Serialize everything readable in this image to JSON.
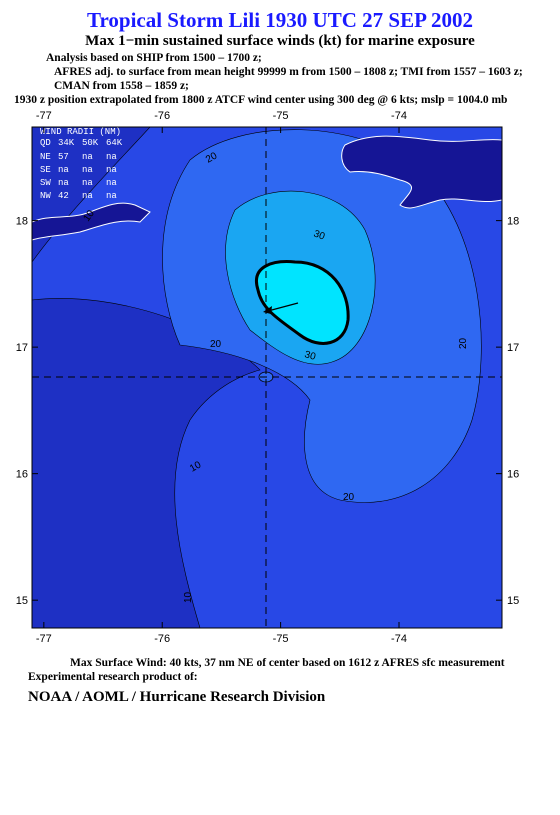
{
  "header": {
    "title": "Tropical Storm Lili 1930 UTC 27 SEP 2002",
    "subtitle": "Max 1−min sustained surface winds (kt) for marine exposure",
    "notes": [
      "Analysis based on  SHIP from 1500 – 1700 z;",
      "AFRES adj. to surface from mean height 99999 m from 1500 – 1808 z;  TMI from 1557 – 1603 z;",
      "CMAN from 1558 – 1859 z;",
      "1930 z position extrapolated from 1800 z ATCF wind center using 300 deg @ 6 kts; mslp = 1004.0 mb"
    ]
  },
  "map": {
    "xlim": [
      -77.1,
      -73.13
    ],
    "ylim": [
      14.78,
      18.74
    ],
    "xticks": [
      -77,
      -76,
      -75,
      -74
    ],
    "yticks": [
      18,
      17,
      16,
      15
    ],
    "wind_radii": {
      "title": "WIND RADII (NM)",
      "columns": [
        "QD",
        "34K",
        "50K",
        "64K"
      ],
      "rows": [
        [
          "NE",
          "57",
          "na",
          "na"
        ],
        [
          "SE",
          "na",
          "na",
          "na"
        ],
        [
          "SW",
          "na",
          "na",
          "na"
        ],
        [
          "NW",
          "42",
          "na",
          "na"
        ]
      ]
    },
    "contour_labels": [
      20,
      10,
      30,
      20,
      30,
      20,
      10,
      20,
      10
    ]
  },
  "footer": {
    "max_wind": "Max Surface Wind: 40 kts, 37 nm NE of center based on 1612 z AFRES sfc measurement",
    "credit": "Experimental research product of:",
    "organization": "NOAA / AOML / Hurricane Research Division"
  }
}
